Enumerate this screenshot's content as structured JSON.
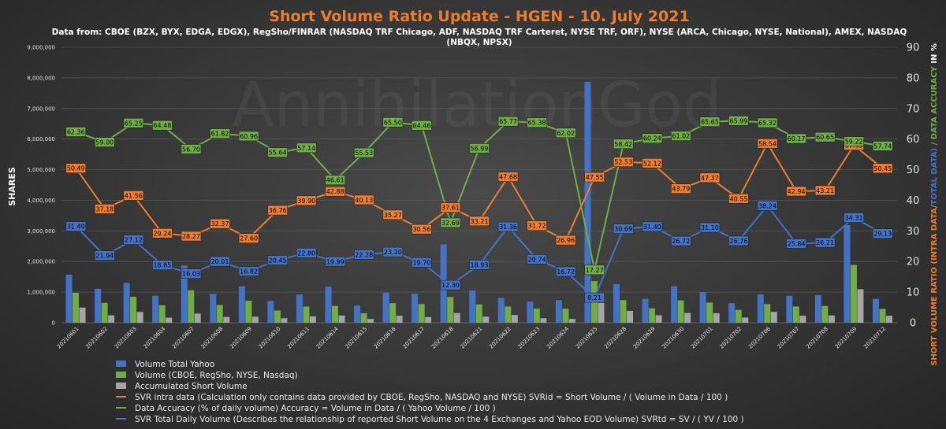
{
  "chart_data": {
    "type": "bar",
    "title": "Short Volume Ratio Update - HGEN - 10. July 2021",
    "subtitle_line1": "Data from: CBOE (BZX, BYX, EDGA, EDGX), RegSho/FINRAR (NASDAQ TRF Chicago, ADF, NASDAQ TRF Carteret, NYSE TRF, ORF), NYSE (ARCA, Chicago, NYSE, National), AMEX, NASDAQ",
    "subtitle_line2": "(NBQX, NPSX)",
    "watermark": "AnnihilationGod",
    "ylabel_left": "SHARES",
    "ylabel_right_part1": "SHORT VOLUME RATIO (INTRA DATA/",
    "ylabel_right_part2": "TOTAL DATA)",
    "ylabel_right_part3": " / DATA ACCURACY",
    "ylabel_right_part4": " IN %",
    "ylim_left": [
      0,
      9000000
    ],
    "yticks_left": [
      "0",
      "1,000,000",
      "2,000,000",
      "3,000,000",
      "4,000,000",
      "5,000,000",
      "6,000,000",
      "7,000,000",
      "8,000,000",
      "9,000,000"
    ],
    "ylim_right": [
      0,
      90
    ],
    "yticks_right": [
      "0",
      "10",
      "20",
      "30",
      "40",
      "50",
      "60",
      "70",
      "80",
      "90"
    ],
    "categories": [
      "20210601",
      "20210602",
      "20210603",
      "20210604",
      "20210607",
      "20210608",
      "20210609",
      "20210610",
      "20210611",
      "20210614",
      "20210615",
      "20210616",
      "20210617",
      "20210618",
      "20210621",
      "20210622",
      "20210623",
      "20210624",
      "20210625",
      "20210628",
      "20210629",
      "20210630",
      "20210701",
      "20210702",
      "20210706",
      "20210707",
      "20210708",
      "20210709",
      "20210712"
    ],
    "bar_series": [
      {
        "name": "Volume Total Yahoo",
        "color": "#4472c4",
        "values": [
          1570000,
          1110000,
          1300000,
          880000,
          1870000,
          940000,
          1190000,
          710000,
          920000,
          1180000,
          560000,
          980000,
          950000,
          2560000,
          1050000,
          810000,
          690000,
          740000,
          7870000,
          1260000,
          780000,
          1190000,
          1000000,
          640000,
          930000,
          880000,
          900000,
          3190000,
          780000
        ]
      },
      {
        "name": "Volume (CBOE, RegSho, NYSE, Nasdaq)",
        "color": "#70ad47",
        "values": [
          980000,
          650000,
          850000,
          570000,
          1060000,
          580000,
          720000,
          400000,
          530000,
          550000,
          310000,
          640000,
          610000,
          840000,
          600000,
          530000,
          460000,
          460000,
          1360000,
          740000,
          470000,
          730000,
          660000,
          420000,
          610000,
          530000,
          550000,
          1890000,
          450000
        ]
      },
      {
        "name": "Accumulated Short Volume",
        "color": "#a5a5a5",
        "values": [
          495000,
          242000,
          353000,
          167000,
          300000,
          188000,
          199000,
          146000,
          211000,
          236000,
          124000,
          226000,
          186000,
          316000,
          199000,
          253000,
          146000,
          124000,
          646000,
          387000,
          245000,
          319000,
          312000,
          170000,
          357000,
          227000,
          238000,
          1095000,
          227000
        ]
      }
    ],
    "line_series": [
      {
        "name": "SVR intra data (Calculation only contains data provided by CBOE, RegSho, NASDAQ and NYSE) SVRid = Short Volume / ( Volume in Data / 100 )",
        "color": "#ed7d31",
        "values": [
          50.49,
          37.18,
          41.56,
          29.24,
          28.27,
          32.37,
          27.6,
          36.76,
          39.9,
          42.88,
          40.13,
          35.27,
          30.56,
          37.61,
          33.21,
          47.68,
          31.72,
          26.96,
          47.55,
          52.53,
          52.12,
          43.79,
          47.37,
          40.55,
          58.54,
          42.94,
          43.21,
          57.95,
          50.45
        ],
        "labels": [
          "50.49",
          "37.18",
          "41.56",
          "29.24",
          "28.27",
          "32.37",
          "27.60",
          "36.76",
          "39.90",
          "42.88",
          "40.13",
          "35.27",
          "30.56",
          "37.61",
          "33.21",
          "47.68",
          "31.72",
          "26.96",
          "47.55",
          "52.53",
          "52.12",
          "43.79",
          "47.37",
          "40.55",
          "58.54",
          "42.94",
          "43.21",
          "57.95",
          "50.45"
        ]
      },
      {
        "name": "Data Accuracy (% of daily volume) Accuracy = Volume in Data / ( Yahoo Volume / 100 )",
        "color": "#70ad47",
        "values": [
          62.36,
          59.0,
          65.25,
          64.48,
          56.7,
          61.82,
          60.96,
          55.64,
          57.14,
          46.61,
          55.53,
          65.5,
          64.46,
          32.69,
          56.99,
          65.77,
          65.38,
          62.02,
          17.27,
          58.42,
          60.24,
          61.02,
          65.65,
          65.99,
          65.32,
          60.17,
          60.65,
          59.22,
          57.74
        ],
        "labels": [
          "62.36",
          "59.00",
          "65.25",
          "64.48",
          "56.70",
          "61.82",
          "60.96",
          "55.64",
          "57.14",
          "46.61",
          "55.53",
          "65.50",
          "64.46",
          "32.69",
          "56.99",
          "65.77",
          "65.38",
          "62.02",
          "17.27",
          "58.42",
          "60.24",
          "61.02",
          "65.65",
          "65.99",
          "65.32",
          "60.17",
          "60.65",
          "59.22",
          "57.74"
        ]
      },
      {
        "name": "SVR Total Daily Volume (Describes the relationship of reported Short Volume on the 4 Exchanges and Yahoo EOD Volume) SVRtd = SV / ( YV / 100 )",
        "color": "#4472c4",
        "values": [
          31.49,
          21.94,
          27.12,
          18.85,
          16.03,
          20.01,
          16.82,
          20.45,
          22.8,
          19.99,
          22.28,
          23.1,
          19.7,
          12.3,
          18.93,
          31.36,
          20.74,
          16.72,
          8.21,
          30.69,
          31.4,
          26.72,
          31.1,
          26.76,
          38.24,
          25.84,
          26.21,
          34.31,
          29.13
        ],
        "labels": [
          "31.49",
          "21.94",
          "27.12",
          "18.85",
          "16.03",
          "20.01",
          "16.82",
          "20.45",
          "22.80",
          "19.99",
          "22.28",
          "23.10",
          "19.70",
          "12.30",
          "18.93",
          "31.36",
          "20.74",
          "16.72",
          "8.21",
          "30.69",
          "31.40",
          "26.72",
          "31.10",
          "26.76",
          "38.24",
          "25.84",
          "26.21",
          "34.31",
          "29.13"
        ]
      }
    ],
    "legend_placement": "bottom",
    "grid": true
  }
}
